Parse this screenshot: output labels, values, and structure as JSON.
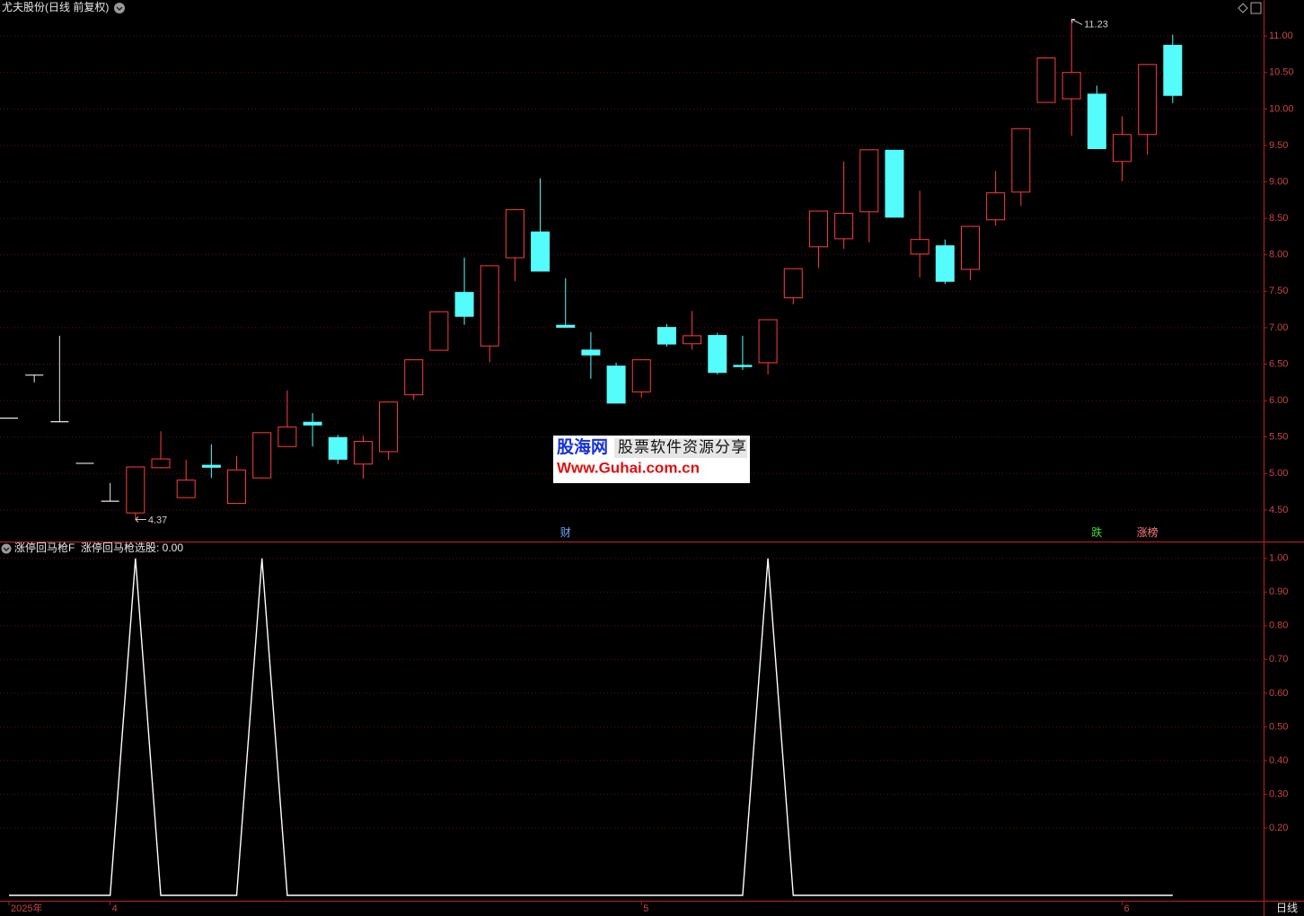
{
  "chart_data": [
    {
      "type": "candlestick",
      "title": "尤夫股份(日线 前复权)",
      "categories": [
        "2025年",
        null,
        null,
        null,
        "4",
        null,
        null,
        null,
        null,
        null,
        null,
        null,
        null,
        null,
        null,
        null,
        null,
        null,
        null,
        null,
        null,
        null,
        null,
        null,
        null,
        "5",
        null,
        null,
        null,
        null,
        null,
        null,
        null,
        null,
        null,
        null,
        null,
        null,
        null,
        null,
        null,
        null,
        null,
        null,
        "6",
        null,
        null
      ],
      "open": [
        5.76,
        6.35,
        5.71,
        5.14,
        4.62,
        4.46,
        5.08,
        4.67,
        5.12,
        4.59,
        4.94,
        5.37,
        5.71,
        5.5,
        5.13,
        5.3,
        6.08,
        6.69,
        7.49,
        6.75,
        7.96,
        8.32,
        7.04,
        6.7,
        6.48,
        6.12,
        7.01,
        6.78,
        6.9,
        6.49,
        6.52,
        7.41,
        8.11,
        8.22,
        8.59,
        9.44,
        8.01,
        8.13,
        7.8,
        8.48,
        8.86,
        10.09,
        10.14,
        10.21,
        9.28,
        9.65,
        10.88
      ],
      "high": [
        5.76,
        6.35,
        6.89,
        5.14,
        4.87,
        5.09,
        5.58,
        5.19,
        5.4,
        5.24,
        5.56,
        6.14,
        5.83,
        5.53,
        5.52,
        5.98,
        6.56,
        7.22,
        7.96,
        7.85,
        8.62,
        9.05,
        7.68,
        6.94,
        6.52,
        6.56,
        7.05,
        7.23,
        6.93,
        6.89,
        7.11,
        7.81,
        8.6,
        9.28,
        9.44,
        9.44,
        8.88,
        8.21,
        8.39,
        9.15,
        9.73,
        10.7,
        11.23,
        10.32,
        9.9,
        10.61,
        11.02
      ],
      "low": [
        5.76,
        6.25,
        5.71,
        5.14,
        4.62,
        4.37,
        5.07,
        4.67,
        4.94,
        4.59,
        4.93,
        5.37,
        5.37,
        5.13,
        4.93,
        5.19,
        6.01,
        6.69,
        7.04,
        6.53,
        7.64,
        7.77,
        7.0,
        6.3,
        5.96,
        6.04,
        6.74,
        6.7,
        6.36,
        6.42,
        6.36,
        7.32,
        7.82,
        8.08,
        8.17,
        8.51,
        7.69,
        7.6,
        7.65,
        8.4,
        8.67,
        10.09,
        9.63,
        9.45,
        9.01,
        9.37,
        10.08
      ],
      "close": [
        5.76,
        6.35,
        5.71,
        5.14,
        4.62,
        5.09,
        5.2,
        4.91,
        5.08,
        5.05,
        5.56,
        5.64,
        5.66,
        5.19,
        5.44,
        5.98,
        6.56,
        7.22,
        7.15,
        7.85,
        8.62,
        7.77,
        7.0,
        6.62,
        5.96,
        6.56,
        6.77,
        6.89,
        6.38,
        6.46,
        7.11,
        7.81,
        8.6,
        8.57,
        9.44,
        8.51,
        8.21,
        7.63,
        8.39,
        8.85,
        9.73,
        10.7,
        10.5,
        9.45,
        9.65,
        10.61,
        10.18
      ],
      "up_color": "#ff3c3c",
      "down_color": "#54fcfc",
      "flat_color": "#e8e8e8",
      "events": [
        null,
        null,
        null,
        null,
        null,
        null,
        null,
        null,
        null,
        null,
        null,
        null,
        null,
        null,
        null,
        null,
        null,
        null,
        null,
        null,
        null,
        null,
        {
          "text": "财",
          "color": "#6aa8ff"
        },
        null,
        null,
        null,
        null,
        null,
        null,
        null,
        null,
        null,
        null,
        null,
        null,
        null,
        null,
        null,
        null,
        null,
        null,
        null,
        null,
        {
          "text": "跌",
          "color": "#3cdc3c"
        },
        null,
        {
          "text": "涨榜",
          "color": "#ff8080"
        },
        null
      ],
      "ylim": [
        4.08,
        11.47
      ],
      "yticks": [
        {
          "value": 4.5,
          "label": "4.50"
        },
        {
          "value": 5,
          "label": "5.00"
        },
        {
          "value": 5.5,
          "label": "5.50"
        },
        {
          "value": 6,
          "label": "6.00"
        },
        {
          "value": 6.5,
          "label": "6.50"
        },
        {
          "value": 7,
          "label": "7.00"
        },
        {
          "value": 7.5,
          "label": "7.50"
        },
        {
          "value": 8,
          "label": "8.00"
        },
        {
          "value": 8.5,
          "label": "8.50"
        },
        {
          "value": 9,
          "label": "9.00"
        },
        {
          "value": 9.5,
          "label": "9.50"
        },
        {
          "value": 10,
          "label": "10.00"
        },
        {
          "value": 10.5,
          "label": "10.50"
        },
        {
          "value": 11,
          "label": "11.00"
        }
      ],
      "grid": true
    },
    {
      "type": "line",
      "title": "涨停回马枪F",
      "readout": "涨停回马枪选股: 0.00",
      "color": "#ffffff",
      "values": [
        0,
        0,
        0,
        0,
        0,
        1,
        0,
        0,
        0,
        0,
        1,
        0,
        0,
        0,
        0,
        0,
        0,
        0,
        0,
        0,
        0,
        0,
        0,
        0,
        0,
        0,
        0,
        0,
        0,
        0,
        1,
        0,
        0,
        0,
        0,
        0,
        0,
        0,
        0,
        0,
        0,
        0,
        0,
        0,
        0,
        0,
        0
      ],
      "ylim": [
        0,
        1.05
      ],
      "yticks": [
        {
          "value": 0.2,
          "label": "0.20"
        },
        {
          "value": 0.3,
          "label": "0.30"
        },
        {
          "value": 0.4,
          "label": "0.40"
        },
        {
          "value": 0.5,
          "label": "0.50"
        },
        {
          "value": 0.6,
          "label": "0.60"
        },
        {
          "value": 0.7,
          "label": "0.70"
        },
        {
          "value": 0.8,
          "label": "0.80"
        },
        {
          "value": 0.9,
          "label": "0.90"
        },
        {
          "value": 1,
          "label": "1.00"
        }
      ],
      "grid": true
    }
  ],
  "watermark": {
    "brand": "股海网",
    "slogan": "股票软件资源分享",
    "url": "Www.Guhai.com.cn"
  },
  "period_label": "日线"
}
